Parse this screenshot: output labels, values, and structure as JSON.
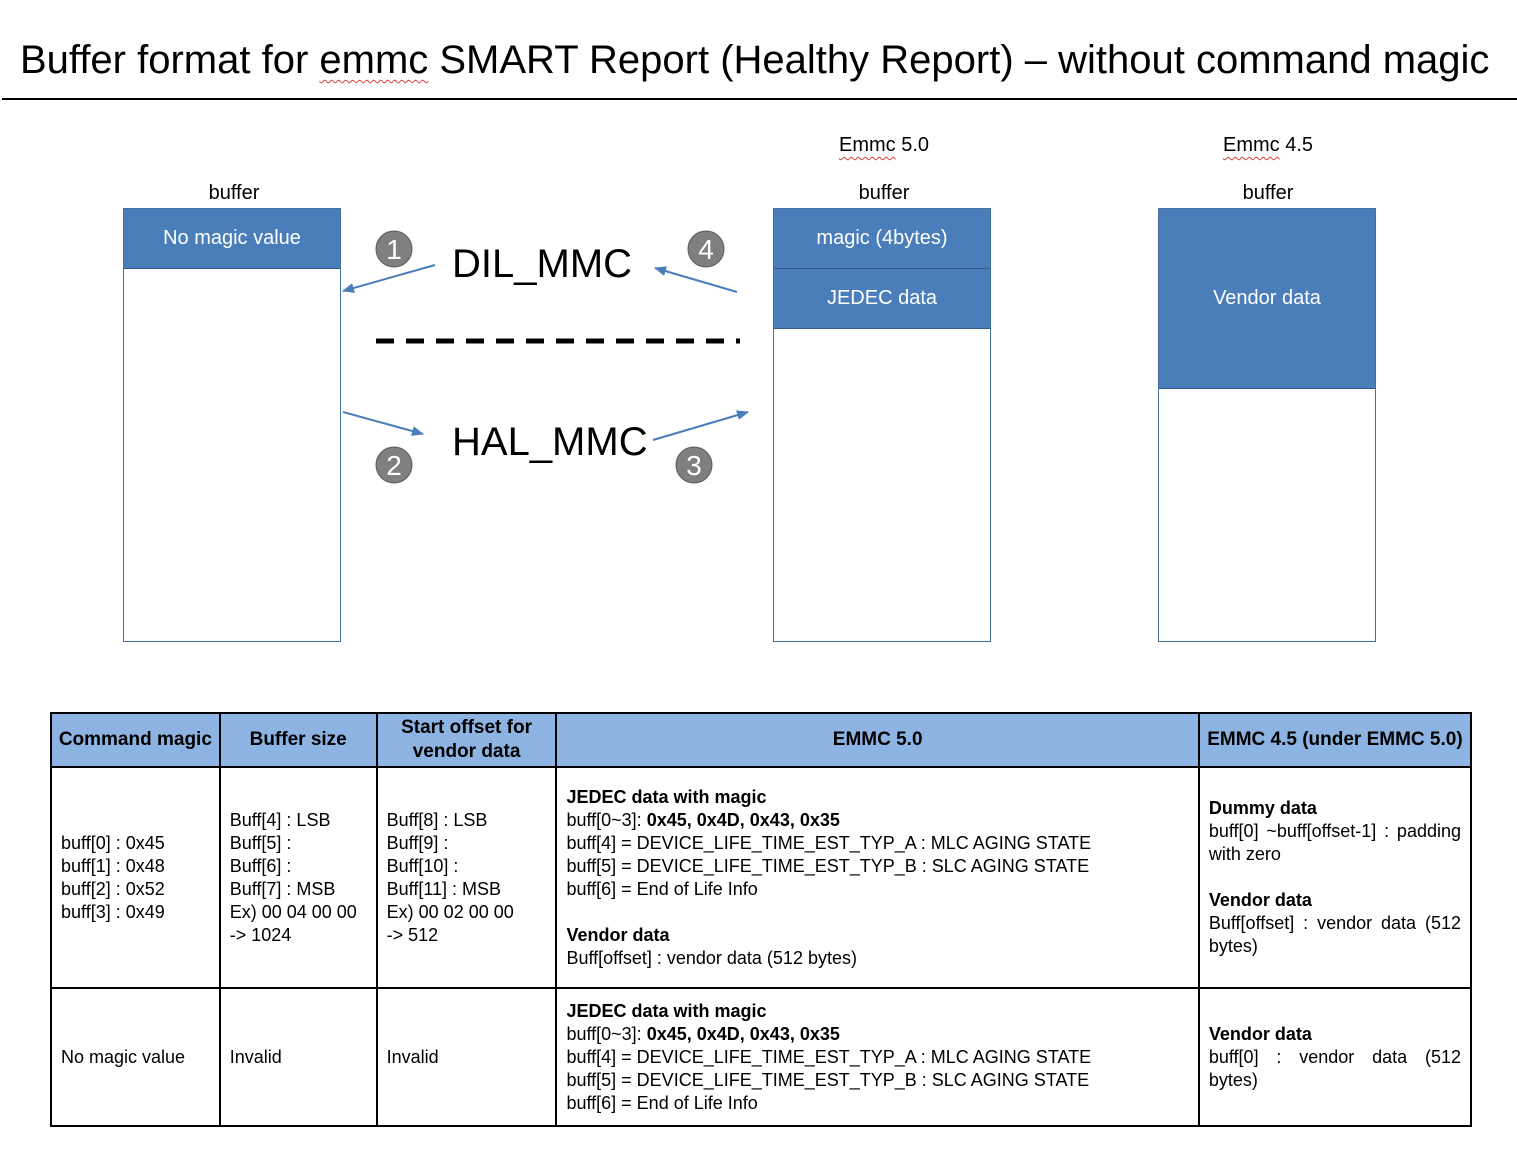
{
  "title": {
    "before": "Buffer format for ",
    "squiggle": "emmc",
    "after": " SMART Report (Healthy Report) – without command magic"
  },
  "labels": {
    "emmc50_squiggle": "Emmc",
    "emmc50_rest": " 5.0",
    "emmc45_squiggle": "Emmc",
    "emmc45_rest": " 4.5",
    "buffer_left": "buffer",
    "buffer_mid": "buffer",
    "buffer_right": "buffer"
  },
  "buffers": {
    "left_seg": "No magic value",
    "mid_seg1": "magic (4bytes)",
    "mid_seg2": "JEDEC data",
    "right_seg": "Vendor data"
  },
  "flow": {
    "dil": "DIL_MMC",
    "hal": "HAL_MMC",
    "step1": "1",
    "step2": "2",
    "step3": "3",
    "step4": "4"
  },
  "colors": {
    "segment_fill": "#4a7ebb",
    "arrow": "#4a7ebb",
    "step_circle": "#7f7f7f",
    "table_header": "#8db3e2"
  },
  "table": {
    "headers": {
      "col1": "Command magic",
      "col2": "Buffer size",
      "col3": "Start offset for vendor data",
      "col4": "EMMC 5.0",
      "col5": "EMMC 4.5 (under EMMC 5.0)"
    },
    "row1": {
      "magic": [
        "buff[0] : 0x45",
        "buff[1] : 0x48",
        "buff[2] : 0x52",
        "buff[3] : 0x49"
      ],
      "size": [
        "Buff[4] : LSB",
        "Buff[5] :",
        "Buff[6] :",
        "Buff[7] : MSB",
        "Ex) 00 04 00 00",
        "-> 1024"
      ],
      "offset": [
        "Buff[8] : LSB",
        "Buff[9] :",
        "Buff[10] :",
        "Buff[11] : MSB",
        "Ex) 00 02 00 00",
        "-> 512"
      ],
      "emmc50": {
        "heading": "JEDEC data with magic",
        "magic_prefix": "buff[0~3]: ",
        "magic_values": "0x45, 0x4D, 0x43, 0x35",
        "line4": "buff[4] = DEVICE_LIFE_TIME_EST_TYP_A : MLC AGING STATE",
        "line5": "buff[5] = DEVICE_LIFE_TIME_EST_TYP_B : SLC AGING STATE",
        "line6": "buff[6] = End of Life Info",
        "vendor_heading": "Vendor data",
        "vendor_line": "Buff[offset] : vendor data (512 bytes)"
      },
      "emmc45": {
        "dummy_heading": "Dummy data",
        "dummy_line": "buff[0] ~buff[offset-1] : padding with zero",
        "vendor_heading": "Vendor data",
        "vendor_line": "Buff[offset] : vendor data (512 bytes)"
      }
    },
    "row2": {
      "magic": "No magic value",
      "size": "Invalid",
      "offset": "Invalid",
      "emmc50": {
        "heading": "JEDEC data with magic",
        "magic_prefix": "buff[0~3]: ",
        "magic_values": "0x45, 0x4D, 0x43, 0x35",
        "line4": "buff[4] = DEVICE_LIFE_TIME_EST_TYP_A : MLC AGING STATE",
        "line5": "buff[5] = DEVICE_LIFE_TIME_EST_TYP_B : SLC AGING STATE",
        "line6": "buff[6] = End of Life Info"
      },
      "emmc45": {
        "vendor_heading": "Vendor data",
        "vendor_line": "buff[0] : vendor data (512 bytes)"
      }
    }
  }
}
